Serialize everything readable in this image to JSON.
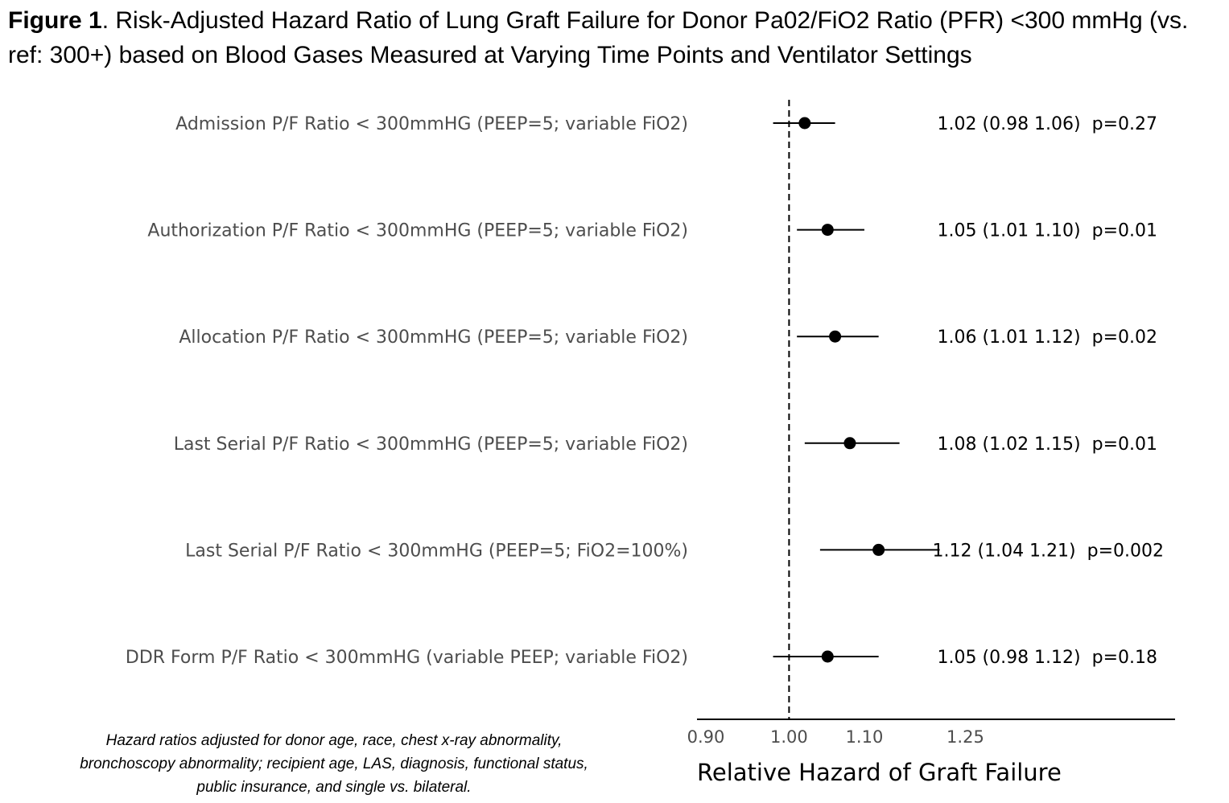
{
  "title": {
    "bold": "Figure 1",
    "text": ". Risk-Adjusted Hazard Ratio of Lung Graft Failure for Donor Pa02/FiO2 Ratio (PFR) <300 mmHg (vs. ref: 300+) based on Blood Gases Measured at Varying Time Points and Ventilator Settings"
  },
  "footnote": "Hazard ratios adjusted for donor age, race, chest x-ray abnormality, bronchoscopy abnormality; recipient age, LAS, diagnosis, functional status, public insurance, and single vs. bilateral.",
  "chart_data": {
    "type": "forest",
    "xlabel": "Relative Hazard of Graft Failure",
    "x_scale": "log",
    "xlim": [
      0.89,
      1.63
    ],
    "xticks": [
      0.9,
      1.0,
      1.1,
      1.25
    ],
    "xtick_labels": [
      "0.90",
      "1.00",
      "1.10",
      "1.25"
    ],
    "reference_line": 1.0,
    "rows": [
      {
        "label": "Admission P/F Ratio < 300mmHG (PEEP=5; variable FiO2)",
        "hr": 1.02,
        "lo": 0.98,
        "hi": 1.06,
        "stat": "1.02 (0.98 1.06)  p=0.27"
      },
      {
        "label": "Authorization P/F Ratio < 300mmHG (PEEP=5; variable FiO2)",
        "hr": 1.05,
        "lo": 1.01,
        "hi": 1.1,
        "stat": "1.05 (1.01 1.10)  p=0.01"
      },
      {
        "label": "Allocation P/F Ratio < 300mmHG (PEEP=5; variable FiO2)",
        "hr": 1.06,
        "lo": 1.01,
        "hi": 1.12,
        "stat": "1.06 (1.01 1.12)  p=0.02"
      },
      {
        "label": "Last Serial P/F Ratio < 300mmHG (PEEP=5; variable FiO2)",
        "hr": 1.08,
        "lo": 1.02,
        "hi": 1.15,
        "stat": "1.08 (1.02 1.15)  p=0.01"
      },
      {
        "label": "Last Serial P/F Ratio < 300mmHG (PEEP=5; FiO2=100%)",
        "hr": 1.12,
        "lo": 1.04,
        "hi": 1.21,
        "stat": "1.12 (1.04 1.21)  p=0.002"
      },
      {
        "label": "DDR Form P/F Ratio < 300mmHG (variable PEEP; variable FiO2)",
        "hr": 1.05,
        "lo": 0.98,
        "hi": 1.12,
        "stat": "1.05 (0.98 1.12)  p=0.18"
      }
    ],
    "colors": {
      "marker": "#000000",
      "label_text": "#4d4d4d",
      "axis": "#000000"
    }
  }
}
